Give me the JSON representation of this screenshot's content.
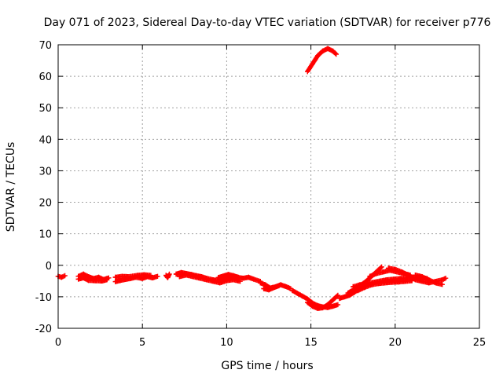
{
  "chart_data": {
    "type": "scatter",
    "title": "Day 071 of 2023, Sidereal Day-to-day VTEC variation (SDTVAR) for receiver p776",
    "xlabel": "GPS time / hours",
    "ylabel": "SDTVAR / TECUs",
    "xlim": [
      0,
      25
    ],
    "ylim": [
      -20,
      70
    ],
    "xticks": [
      0,
      5,
      10,
      15,
      20,
      25
    ],
    "yticks": [
      -20,
      -10,
      0,
      10,
      20,
      30,
      40,
      50,
      60,
      70
    ],
    "grid": true,
    "marker": "plus",
    "color": "#ff0000",
    "series": [
      {
        "name": "SDTVAR",
        "segments": [
          [
            [
              0.0,
              -3.5
            ],
            [
              0.2,
              -3.8
            ],
            [
              0.4,
              -3.3
            ]
          ],
          [
            [
              1.2,
              -3.5
            ],
            [
              1.5,
              -2.8
            ],
            [
              1.8,
              -3.6
            ],
            [
              2.1,
              -4.2
            ],
            [
              2.4,
              -3.8
            ],
            [
              2.7,
              -4.5
            ],
            [
              3.0,
              -4.0
            ]
          ],
          [
            [
              1.2,
              -4.4
            ],
            [
              1.5,
              -4.0
            ],
            [
              1.8,
              -4.8
            ],
            [
              2.2,
              -4.9
            ],
            [
              2.6,
              -5.0
            ],
            [
              2.9,
              -4.6
            ]
          ],
          [
            [
              3.4,
              -5.2
            ],
            [
              3.7,
              -4.8
            ],
            [
              4.0,
              -4.5
            ],
            [
              4.3,
              -4.2
            ],
            [
              4.6,
              -3.8
            ],
            [
              5.0,
              -4.2
            ],
            [
              5.3,
              -3.6
            ],
            [
              5.6,
              -4.0
            ],
            [
              5.9,
              -3.5
            ]
          ],
          [
            [
              3.4,
              -3.8
            ],
            [
              3.8,
              -3.5
            ],
            [
              4.2,
              -3.6
            ],
            [
              4.7,
              -3.2
            ],
            [
              5.1,
              -3.0
            ],
            [
              5.5,
              -3.2
            ]
          ],
          [
            [
              6.4,
              -3.2
            ],
            [
              6.5,
              -3.9
            ],
            [
              6.6,
              -2.8
            ]
          ],
          [
            [
              7.0,
              -2.8
            ],
            [
              7.3,
              -2.3
            ],
            [
              7.6,
              -2.6
            ],
            [
              7.9,
              -2.9
            ],
            [
              8.2,
              -3.3
            ],
            [
              8.5,
              -3.6
            ],
            [
              8.8,
              -4.1
            ],
            [
              9.2,
              -4.6
            ],
            [
              9.5,
              -4.9
            ],
            [
              9.8,
              -4.5
            ],
            [
              10.1,
              -3.9
            ],
            [
              10.4,
              -3.6
            ],
            [
              10.7,
              -3.9
            ],
            [
              11.0,
              -4.1
            ],
            [
              11.3,
              -3.8
            ],
            [
              11.6,
              -4.4
            ],
            [
              12.0,
              -5.1
            ]
          ],
          [
            [
              7.2,
              -3.6
            ],
            [
              7.6,
              -3.1
            ],
            [
              8.0,
              -3.6
            ],
            [
              8.4,
              -4.1
            ],
            [
              8.8,
              -4.6
            ],
            [
              9.2,
              -5.1
            ],
            [
              9.6,
              -5.6
            ],
            [
              10.0,
              -4.9
            ],
            [
              10.4,
              -4.6
            ],
            [
              10.8,
              -5.1
            ]
          ],
          [
            [
              9.5,
              -3.9
            ],
            [
              9.8,
              -3.4
            ],
            [
              10.1,
              -2.9
            ],
            [
              10.4,
              -3.3
            ],
            [
              10.7,
              -3.8
            ]
          ],
          [
            [
              12.0,
              -5.6
            ],
            [
              12.3,
              -6.2
            ],
            [
              12.6,
              -7.2
            ],
            [
              12.9,
              -6.8
            ],
            [
              13.2,
              -6.2
            ],
            [
              13.5,
              -6.7
            ],
            [
              13.8,
              -7.4
            ]
          ],
          [
            [
              12.2,
              -7.4
            ],
            [
              12.5,
              -7.8
            ],
            [
              12.8,
              -7.1
            ],
            [
              13.1,
              -6.5
            ]
          ],
          [
            [
              13.9,
              -8.0
            ],
            [
              14.2,
              -8.9
            ],
            [
              14.5,
              -9.8
            ],
            [
              14.8,
              -10.7
            ],
            [
              15.1,
              -12.0
            ],
            [
              15.4,
              -12.8
            ],
            [
              15.7,
              -13.2
            ],
            [
              16.0,
              -13.4
            ],
            [
              16.3,
              -13.0
            ],
            [
              16.6,
              -12.5
            ]
          ],
          [
            [
              14.8,
              -11.8
            ],
            [
              15.1,
              -13.0
            ],
            [
              15.4,
              -13.7
            ],
            [
              15.7,
              -13.5
            ],
            [
              16.0,
              -12.5
            ],
            [
              16.3,
              -11.0
            ],
            [
              16.6,
              -9.5
            ]
          ],
          [
            [
              17.2,
              -8.8
            ],
            [
              17.5,
              -7.8
            ],
            [
              17.8,
              -6.8
            ],
            [
              18.1,
              -5.8
            ],
            [
              18.4,
              -4.5
            ],
            [
              18.7,
              -3.0
            ],
            [
              19.0,
              -1.5
            ],
            [
              19.2,
              -0.5
            ]
          ],
          [
            [
              16.7,
              -10.5
            ],
            [
              17.0,
              -10.0
            ],
            [
              17.3,
              -9.5
            ],
            [
              17.6,
              -8.5
            ],
            [
              17.9,
              -7.5
            ],
            [
              18.2,
              -6.5
            ]
          ],
          [
            [
              17.5,
              -6.8
            ],
            [
              17.9,
              -6.2
            ],
            [
              18.3,
              -5.8
            ],
            [
              18.7,
              -5.4
            ],
            [
              19.1,
              -5.0
            ],
            [
              19.5,
              -4.6
            ],
            [
              19.9,
              -4.4
            ],
            [
              20.3,
              -4.2
            ],
            [
              20.7,
              -4.0
            ],
            [
              21.1,
              -3.8
            ],
            [
              21.5,
              -3.9
            ],
            [
              21.9,
              -4.2
            ]
          ],
          [
            [
              17.8,
              -8.0
            ],
            [
              18.2,
              -7.0
            ],
            [
              18.6,
              -6.2
            ],
            [
              19.0,
              -5.8
            ],
            [
              19.4,
              -5.6
            ],
            [
              19.8,
              -5.4
            ],
            [
              20.2,
              -5.3
            ],
            [
              20.6,
              -5.1
            ],
            [
              21.0,
              -4.9
            ]
          ],
          [
            [
              18.5,
              -3.5
            ],
            [
              18.9,
              -2.6
            ],
            [
              19.3,
              -2.1
            ],
            [
              19.7,
              -1.6
            ],
            [
              20.1,
              -2.1
            ],
            [
              20.5,
              -2.6
            ],
            [
              20.9,
              -3.1
            ]
          ],
          [
            [
              19.6,
              -0.9
            ],
            [
              20.0,
              -1.3
            ],
            [
              20.4,
              -2.1
            ],
            [
              20.8,
              -3.2
            ],
            [
              21.2,
              -4.6
            ],
            [
              21.6,
              -5.1
            ],
            [
              22.0,
              -5.6
            ],
            [
              22.4,
              -5.1
            ],
            [
              22.8,
              -4.6
            ],
            [
              23.0,
              -4.1
            ]
          ],
          [
            [
              21.2,
              -3.1
            ],
            [
              21.6,
              -3.6
            ],
            [
              22.0,
              -4.6
            ],
            [
              22.4,
              -5.6
            ],
            [
              22.8,
              -6.1
            ]
          ],
          [
            [
              14.8,
              61.5
            ],
            [
              15.1,
              64.0
            ],
            [
              15.4,
              66.5
            ],
            [
              15.7,
              68.0
            ],
            [
              16.0,
              68.8
            ],
            [
              16.3,
              68.0
            ],
            [
              16.5,
              67.0
            ]
          ]
        ]
      }
    ]
  }
}
